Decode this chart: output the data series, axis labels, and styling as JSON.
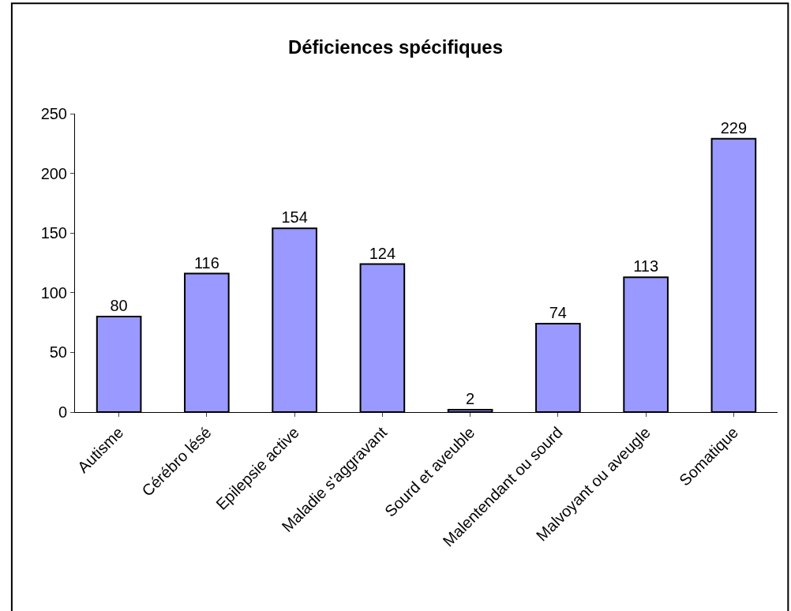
{
  "chart_data": {
    "type": "bar",
    "title": "Déficiences spécifiques",
    "categories": [
      "Autisme",
      "Cérébro lésé",
      "Epilepsie active",
      "Maladie s'aggravant",
      "Sourd et aveuble",
      "Malentendant ou sourd",
      "Malvoyant ou aveugle",
      "Somatique"
    ],
    "values": [
      80,
      116,
      154,
      124,
      2,
      74,
      113,
      229
    ],
    "color": "#9999ff",
    "ylim": [
      0,
      250
    ],
    "yticks": [
      0,
      50,
      100,
      150,
      200,
      250
    ],
    "data_labels": true,
    "grid": false
  }
}
